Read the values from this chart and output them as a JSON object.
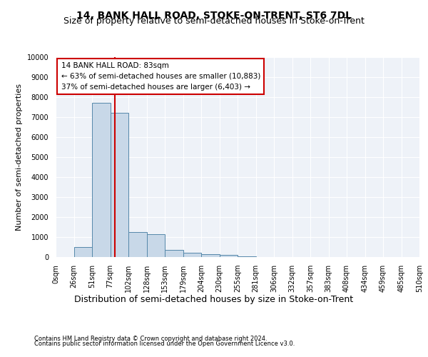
{
  "title1": "14, BANK HALL ROAD, STOKE-ON-TRENT, ST6 7DL",
  "title2": "Size of property relative to semi-detached houses in Stoke-on-Trent",
  "xlabel": "Distribution of semi-detached houses by size in Stoke-on-Trent",
  "ylabel": "Number of semi-detached properties",
  "footer1": "Contains HM Land Registry data © Crown copyright and database right 2024.",
  "footer2": "Contains public sector information licensed under the Open Government Licence v3.0.",
  "bin_labels": [
    "0sqm",
    "26sqm",
    "51sqm",
    "77sqm",
    "102sqm",
    "128sqm",
    "153sqm",
    "179sqm",
    "204sqm",
    "230sqm",
    "255sqm",
    "281sqm",
    "306sqm",
    "332sqm",
    "357sqm",
    "383sqm",
    "408sqm",
    "434sqm",
    "459sqm",
    "485sqm",
    "510sqm"
  ],
  "bar_values": [
    0,
    500,
    7700,
    7200,
    1250,
    1150,
    350,
    200,
    150,
    100,
    50,
    0,
    0,
    0,
    0,
    0,
    0,
    0,
    0,
    0
  ],
  "bar_color": "#c8d8e8",
  "bar_edge_color": "#5588aa",
  "red_line_x": 3.24,
  "red_line_color": "#cc0000",
  "annotation_text_line1": "14 BANK HALL ROAD: 83sqm",
  "annotation_text_line2": "← 63% of semi-detached houses are smaller (10,883)",
  "annotation_text_line3": "37% of semi-detached houses are larger (6,403) →",
  "annotation_box_color": "#ffffff",
  "annotation_box_edge": "#cc0000",
  "ylim": [
    0,
    10000
  ],
  "yticks": [
    0,
    1000,
    2000,
    3000,
    4000,
    5000,
    6000,
    7000,
    8000,
    9000,
    10000
  ],
  "bg_color": "#eef2f8",
  "grid_color": "#ffffff",
  "title1_fontsize": 10,
  "title2_fontsize": 9,
  "ylabel_fontsize": 8,
  "xlabel_fontsize": 9,
  "tick_fontsize": 7,
  "ann_fontsize": 7.5,
  "footer_fontsize": 6
}
